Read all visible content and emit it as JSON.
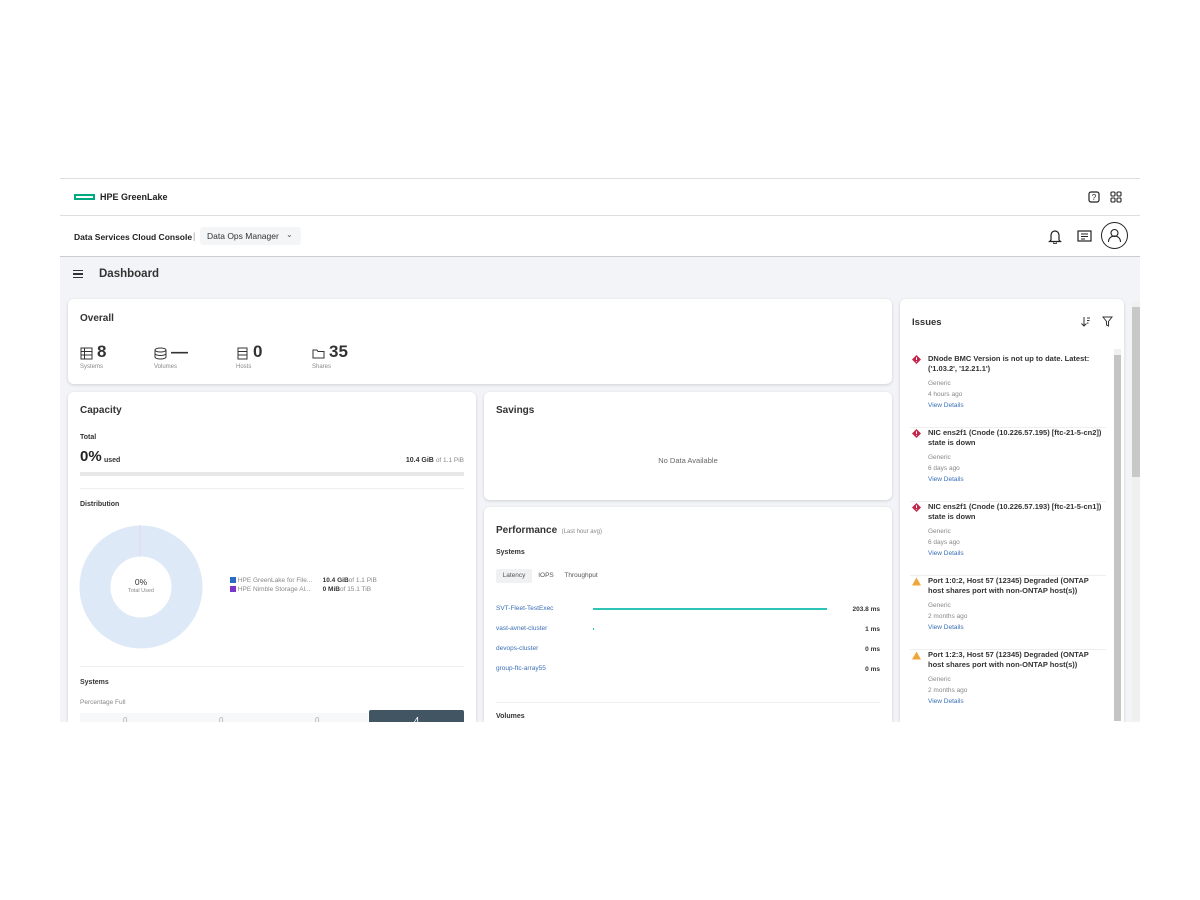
{
  "brand": {
    "name": "HPE GreenLake",
    "accent": "#01a982"
  },
  "header": {
    "console": "Data Services Cloud Console",
    "separator": "|",
    "app_select": "Data Ops Manager",
    "icons": [
      "help-icon",
      "apps-grid-icon",
      "bell-icon",
      "news-icon",
      "user-avatar-icon"
    ]
  },
  "page": {
    "title": "Dashboard"
  },
  "overall": {
    "title": "Overall",
    "stats": [
      {
        "icon": "server-icon",
        "value": "8",
        "label": "Systems"
      },
      {
        "icon": "database-icon",
        "value": "—",
        "label": "Volumes"
      },
      {
        "icon": "host-icon",
        "value": "0",
        "label": "Hosts"
      },
      {
        "icon": "folder-icon",
        "value": "35",
        "label": "Shares"
      }
    ]
  },
  "capacity": {
    "title": "Capacity",
    "total_label": "Total",
    "pct": "0%",
    "used": "used",
    "used_amount": "10.4 GiB",
    "of_total": "of 1.1 PiB",
    "used_fraction": 0.0,
    "distribution_title": "Distribution",
    "donut_pct": "0%",
    "donut_label": "Total Used",
    "legend": [
      {
        "name": "HPE GreenLake for File...",
        "amount": "10.4 GiB",
        "of": "of 1.1 PiB",
        "color": "#2a6cc4"
      },
      {
        "name": "HPE Nimble Storage Al...",
        "amount": "0 MiB",
        "of": "of 15.1 TiB",
        "color": "#7b35c9"
      }
    ],
    "systems_title": "Systems",
    "percentage_full": "Percentage Full",
    "bar_values": [
      "0",
      "0",
      "0",
      "4"
    ]
  },
  "savings": {
    "title": "Savings",
    "empty": "No Data Available"
  },
  "performance": {
    "title": "Performance",
    "subtitle": "(Last hour avg)",
    "systems_title": "Systems",
    "tabs": [
      "Latency",
      "IOPS",
      "Throughput"
    ],
    "active_tab": "Latency",
    "bar_color": "#2ec4b6",
    "rows": [
      {
        "name": "SVT-Fleet-TestExec",
        "value": "203.8 ms",
        "ms": 203.8
      },
      {
        "name": "vast-avnet-cluster",
        "value": "1 ms",
        "ms": 1
      },
      {
        "name": "devops-cluster",
        "value": "0 ms",
        "ms": 0
      },
      {
        "name": "group-ftc-array55",
        "value": "0 ms",
        "ms": 0
      }
    ],
    "volumes_title": "Volumes"
  },
  "issues": {
    "title": "Issues",
    "items": [
      {
        "severity": "critical",
        "title": "DNode BMC Version is not up to date. Latest: ('1.03.2', '12.21.1')",
        "category": "Generic",
        "time": "4 hours ago",
        "link": "View Details"
      },
      {
        "severity": "critical",
        "title": "NIC ens2f1 (Cnode (10.226.57.195) [ftc-21-5-cn2]) state is down",
        "category": "Generic",
        "time": "6 days ago",
        "link": "View Details"
      },
      {
        "severity": "critical",
        "title": "NIC ens2f1 (Cnode (10.226.57.193) [ftc-21-5-cn1]) state is down",
        "category": "Generic",
        "time": "6 days ago",
        "link": "View Details"
      },
      {
        "severity": "warning",
        "title": "Port 1:0:2, Host 57 (12345) Degraded (ONTAP host shares port with non-ONTAP host(s))",
        "category": "Generic",
        "time": "2 months ago",
        "link": "View Details"
      },
      {
        "severity": "warning",
        "title": "Port 1:2:3, Host 57 (12345) Degraded (ONTAP host shares port with non-ONTAP host(s))",
        "category": "Generic",
        "time": "2 months ago",
        "link": "View Details"
      }
    ]
  }
}
